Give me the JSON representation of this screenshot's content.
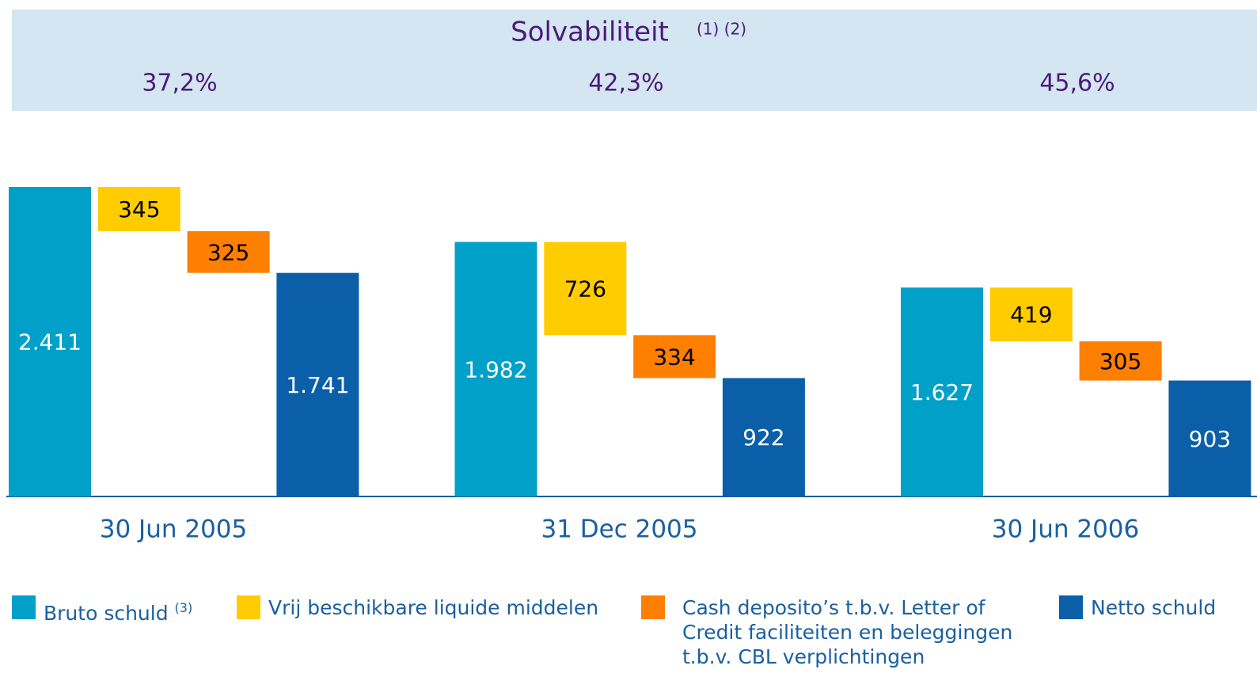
{
  "header": {
    "title": "Solvabiliteit",
    "note": "(1) (2)",
    "ratios": [
      "37,2%",
      "42,3%",
      "45,6%"
    ]
  },
  "chart_data": {
    "type": "waterfall",
    "categories": [
      "30 Jun 2005",
      "31 Dec 2005",
      "30 Jun 2006"
    ],
    "series": [
      {
        "name": "Bruto schuld",
        "note": "(3)",
        "color": "#00a0c8",
        "values": [
          2411,
          1982,
          1627
        ],
        "value_labels": [
          "2.411",
          "1.982",
          "1.627"
        ]
      },
      {
        "name": "Vrij beschikbare liquide middelen",
        "color": "#ffcc00",
        "values": [
          345,
          726,
          419
        ]
      },
      {
        "name": "Cash deposito’s t.b.v. Letter of Credit faciliteiten en beleggingen t.b.v. CBL verplichtingen",
        "color": "#ff7f00",
        "values": [
          325,
          334,
          305
        ]
      },
      {
        "name": "Netto schuld",
        "color": "#0a5fa8",
        "values": [
          1741,
          922,
          903
        ],
        "value_labels": [
          "1.741",
          "922",
          "903"
        ]
      }
    ]
  }
}
